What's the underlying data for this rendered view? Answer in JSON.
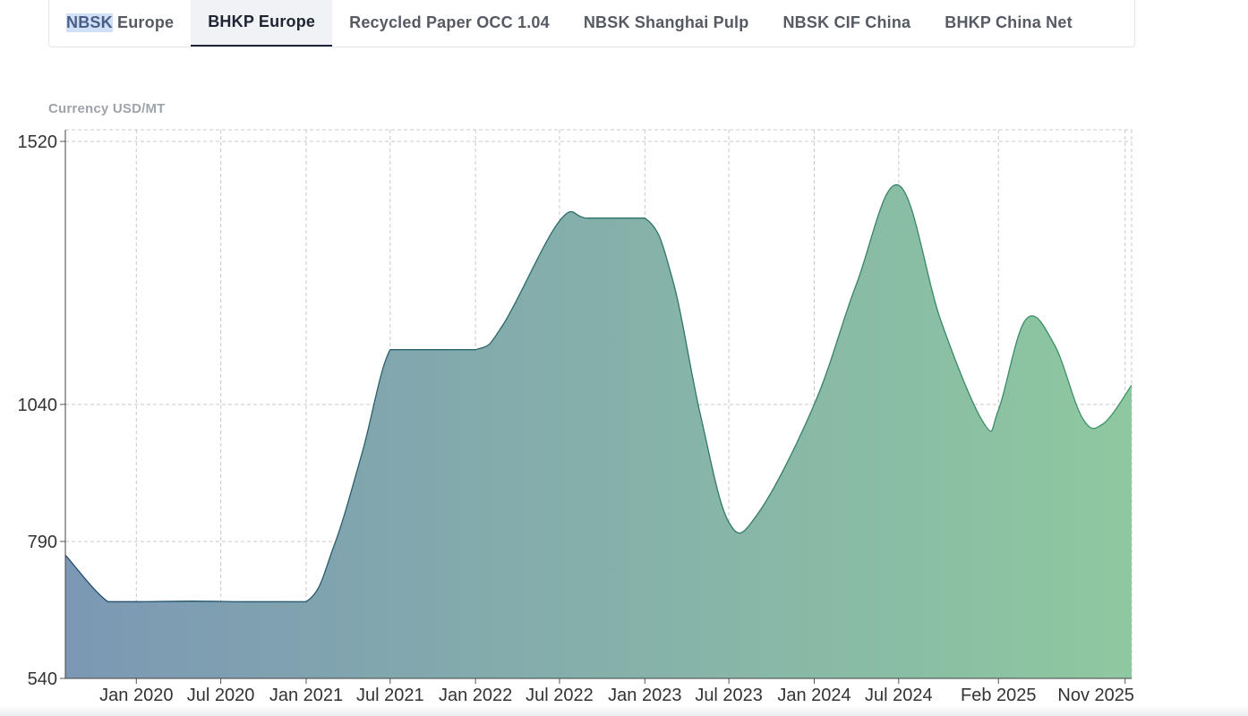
{
  "tabs": [
    {
      "label_hl": "NBSK",
      "label_rest": " Europe",
      "active": false
    },
    {
      "label": "BHKP Europe",
      "active": true
    },
    {
      "label": "Recycled Paper OCC 1.04",
      "active": false
    },
    {
      "label": "NBSK Shanghai Pulp",
      "active": false
    },
    {
      "label": "NBSK CIF China",
      "active": false
    },
    {
      "label": "BHKP China Net",
      "active": false
    }
  ],
  "currency_label": "Currency USD/MT",
  "colors": {
    "gradient_start": "#7c98b4",
    "gradient_end": "#8ec8a0",
    "line_start": "#1f4a6e",
    "line_end": "#3d9566",
    "grid": "#c8c8c8"
  },
  "chart_data": {
    "type": "area",
    "title": "",
    "xlabel": "",
    "ylabel": "Currency USD/MT",
    "ylim": [
      540,
      1520
    ],
    "yticks": [
      540,
      790,
      1040,
      1520
    ],
    "grid": true,
    "x_domain": [
      "2019-08-01",
      "2025-11-15"
    ],
    "xticks": [
      {
        "date": "2020-01-01",
        "label": "Jan 2020"
      },
      {
        "date": "2020-07-01",
        "label": "Jul 2020"
      },
      {
        "date": "2021-01-01",
        "label": "Jan 2021"
      },
      {
        "date": "2021-07-01",
        "label": "Jul 2021"
      },
      {
        "date": "2022-01-01",
        "label": "Jan 2022"
      },
      {
        "date": "2022-07-01",
        "label": "Jul 2022"
      },
      {
        "date": "2023-01-01",
        "label": "Jan 2023"
      },
      {
        "date": "2023-07-01",
        "label": "Jul 2023"
      },
      {
        "date": "2024-01-01",
        "label": "Jan 2024"
      },
      {
        "date": "2024-07-01",
        "label": "Jul 2024"
      },
      {
        "date": "2025-02-01",
        "label": "Feb 2025"
      },
      {
        "date": "2025-11-01",
        "label": "Nov 2025"
      }
    ],
    "series": [
      {
        "points": [
          [
            "2019-08-01",
            765
          ],
          [
            "2019-11-01",
            680
          ],
          [
            "2020-01-01",
            680
          ],
          [
            "2020-05-01",
            681
          ],
          [
            "2020-09-01",
            680
          ],
          [
            "2021-01-01",
            680
          ],
          [
            "2021-03-01",
            780
          ],
          [
            "2021-05-01",
            950
          ],
          [
            "2021-07-01",
            1140
          ],
          [
            "2021-09-01",
            1140
          ],
          [
            "2022-01-01",
            1140
          ],
          [
            "2022-03-01",
            1185
          ],
          [
            "2022-07-01",
            1375
          ],
          [
            "2022-09-01",
            1380
          ],
          [
            "2023-01-01",
            1380
          ],
          [
            "2023-03-01",
            1270
          ],
          [
            "2023-05-01",
            1020
          ],
          [
            "2023-07-01",
            825
          ],
          [
            "2023-09-01",
            840
          ],
          [
            "2024-01-01",
            1040
          ],
          [
            "2024-04-01",
            1260
          ],
          [
            "2024-07-01",
            1440
          ],
          [
            "2024-10-01",
            1190
          ],
          [
            "2025-01-01",
            1005
          ],
          [
            "2025-02-01",
            1030
          ],
          [
            "2025-04-01",
            1195
          ],
          [
            "2025-06-01",
            1150
          ],
          [
            "2025-08-01",
            1015
          ],
          [
            "2025-09-15",
            1005
          ],
          [
            "2025-11-15",
            1075
          ]
        ]
      }
    ]
  }
}
